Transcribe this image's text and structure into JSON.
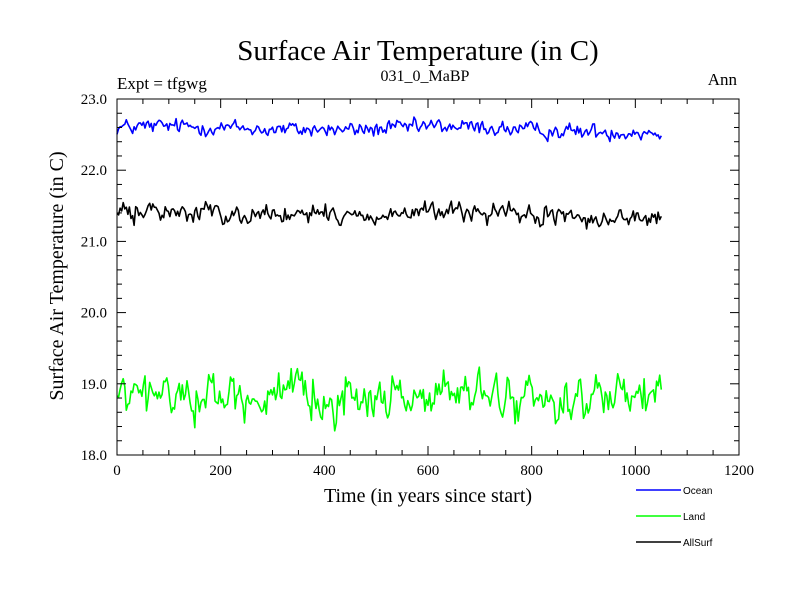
{
  "chart_data": {
    "type": "line",
    "title": "Surface Air Temperature (in C)",
    "subtitle": "031_0_MaBP",
    "left_label": "Expt = tfgwg",
    "right_label": "Ann",
    "xlabel": "Time (in years since start)",
    "ylabel": "Surface Air Temperature (in C)",
    "xlim": [
      0,
      1200
    ],
    "ylim": [
      18.0,
      23.0
    ],
    "x_ticks": [
      0,
      200,
      400,
      600,
      800,
      1000,
      1200
    ],
    "x_tick_labels": [
      "0",
      "200",
      "400",
      "600",
      "800",
      "1000",
      "1200"
    ],
    "y_ticks": [
      18.0,
      19.0,
      20.0,
      21.0,
      22.0,
      23.0
    ],
    "y_tick_labels": [
      "18.0",
      "19.0",
      "20.0",
      "21.0",
      "22.0",
      "23.0"
    ],
    "grid": false,
    "legend_position": "bottom-right",
    "x_range_years": [
      0,
      1050
    ],
    "series": [
      {
        "name": "Ocean",
        "color": "#0000ff",
        "mean": 22.58,
        "amplitude": 0.08,
        "anchors": [
          [
            0,
            22.6
          ],
          [
            100,
            22.62
          ],
          [
            200,
            22.6
          ],
          [
            300,
            22.57
          ],
          [
            400,
            22.57
          ],
          [
            500,
            22.57
          ],
          [
            600,
            22.62
          ],
          [
            700,
            22.6
          ],
          [
            800,
            22.56
          ],
          [
            900,
            22.54
          ],
          [
            1050,
            22.53
          ]
        ]
      },
      {
        "name": "Land",
        "color": "#00ff00",
        "mean": 18.82,
        "amplitude": 0.22,
        "anchors": [
          [
            0,
            18.82
          ],
          [
            100,
            18.85
          ],
          [
            200,
            18.84
          ],
          [
            300,
            18.82
          ],
          [
            400,
            18.8
          ],
          [
            500,
            18.8
          ],
          [
            600,
            18.85
          ],
          [
            700,
            18.84
          ],
          [
            800,
            18.78
          ],
          [
            900,
            18.78
          ],
          [
            1050,
            18.78
          ]
        ]
      },
      {
        "name": "AllSurf",
        "color": "#000000",
        "mean": 21.38,
        "amplitude": 0.1,
        "anchors": [
          [
            0,
            21.4
          ],
          [
            100,
            21.42
          ],
          [
            200,
            21.4
          ],
          [
            300,
            21.38
          ],
          [
            400,
            21.36
          ],
          [
            500,
            21.36
          ],
          [
            600,
            21.42
          ],
          [
            700,
            21.4
          ],
          [
            800,
            21.35
          ],
          [
            900,
            21.33
          ],
          [
            1050,
            21.32
          ]
        ]
      }
    ]
  }
}
